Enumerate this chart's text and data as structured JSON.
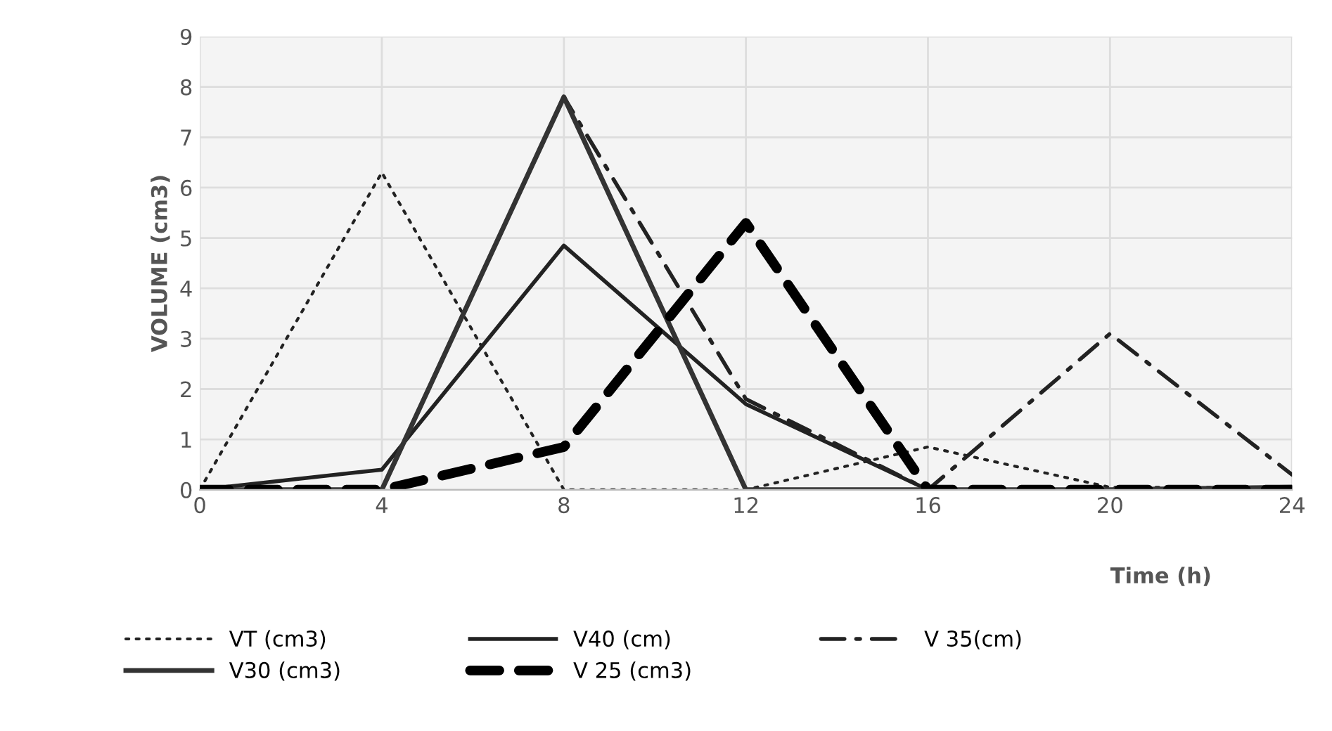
{
  "chart_data": {
    "type": "line",
    "xlabel": "Time (h)",
    "ylabel": "VOLUME (cm3)",
    "x": [
      0,
      4,
      8,
      12,
      16,
      20,
      24
    ],
    "series": [
      {
        "name": "VT (cm3)",
        "color": "#222222",
        "line_style": "dotted",
        "values": [
          0,
          6.3,
          0,
          0,
          0.85,
          0.05,
          0.05
        ]
      },
      {
        "name": "V40 (cm)",
        "color": "#222222",
        "line_style": "solid",
        "values": [
          0,
          0.4,
          4.85,
          1.7,
          0,
          0,
          0.05
        ]
      },
      {
        "name": "V 35(cm)",
        "color": "#222222",
        "line_style": "dashdot",
        "values": [
          0,
          0,
          7.8,
          1.8,
          0,
          3.1,
          0.3
        ]
      },
      {
        "name": "V30 (cm3)",
        "color": "#333333",
        "line_style": "solid",
        "values": [
          0,
          0,
          7.8,
          0,
          0,
          0,
          0.05
        ]
      },
      {
        "name": "V 25 (cm3)",
        "color": "#000000",
        "line_style": "dashed",
        "values": [
          0,
          0,
          0.85,
          5.3,
          0,
          0,
          0
        ]
      }
    ],
    "xlim": [
      0,
      24
    ],
    "xticks": [
      0,
      4,
      8,
      12,
      16,
      20,
      24
    ],
    "ylim": [
      0,
      9
    ],
    "yticks": [
      0,
      1,
      2,
      3,
      4,
      5,
      6,
      7,
      8,
      9
    ],
    "grid": true,
    "legend": "bottom",
    "marker": "none"
  }
}
